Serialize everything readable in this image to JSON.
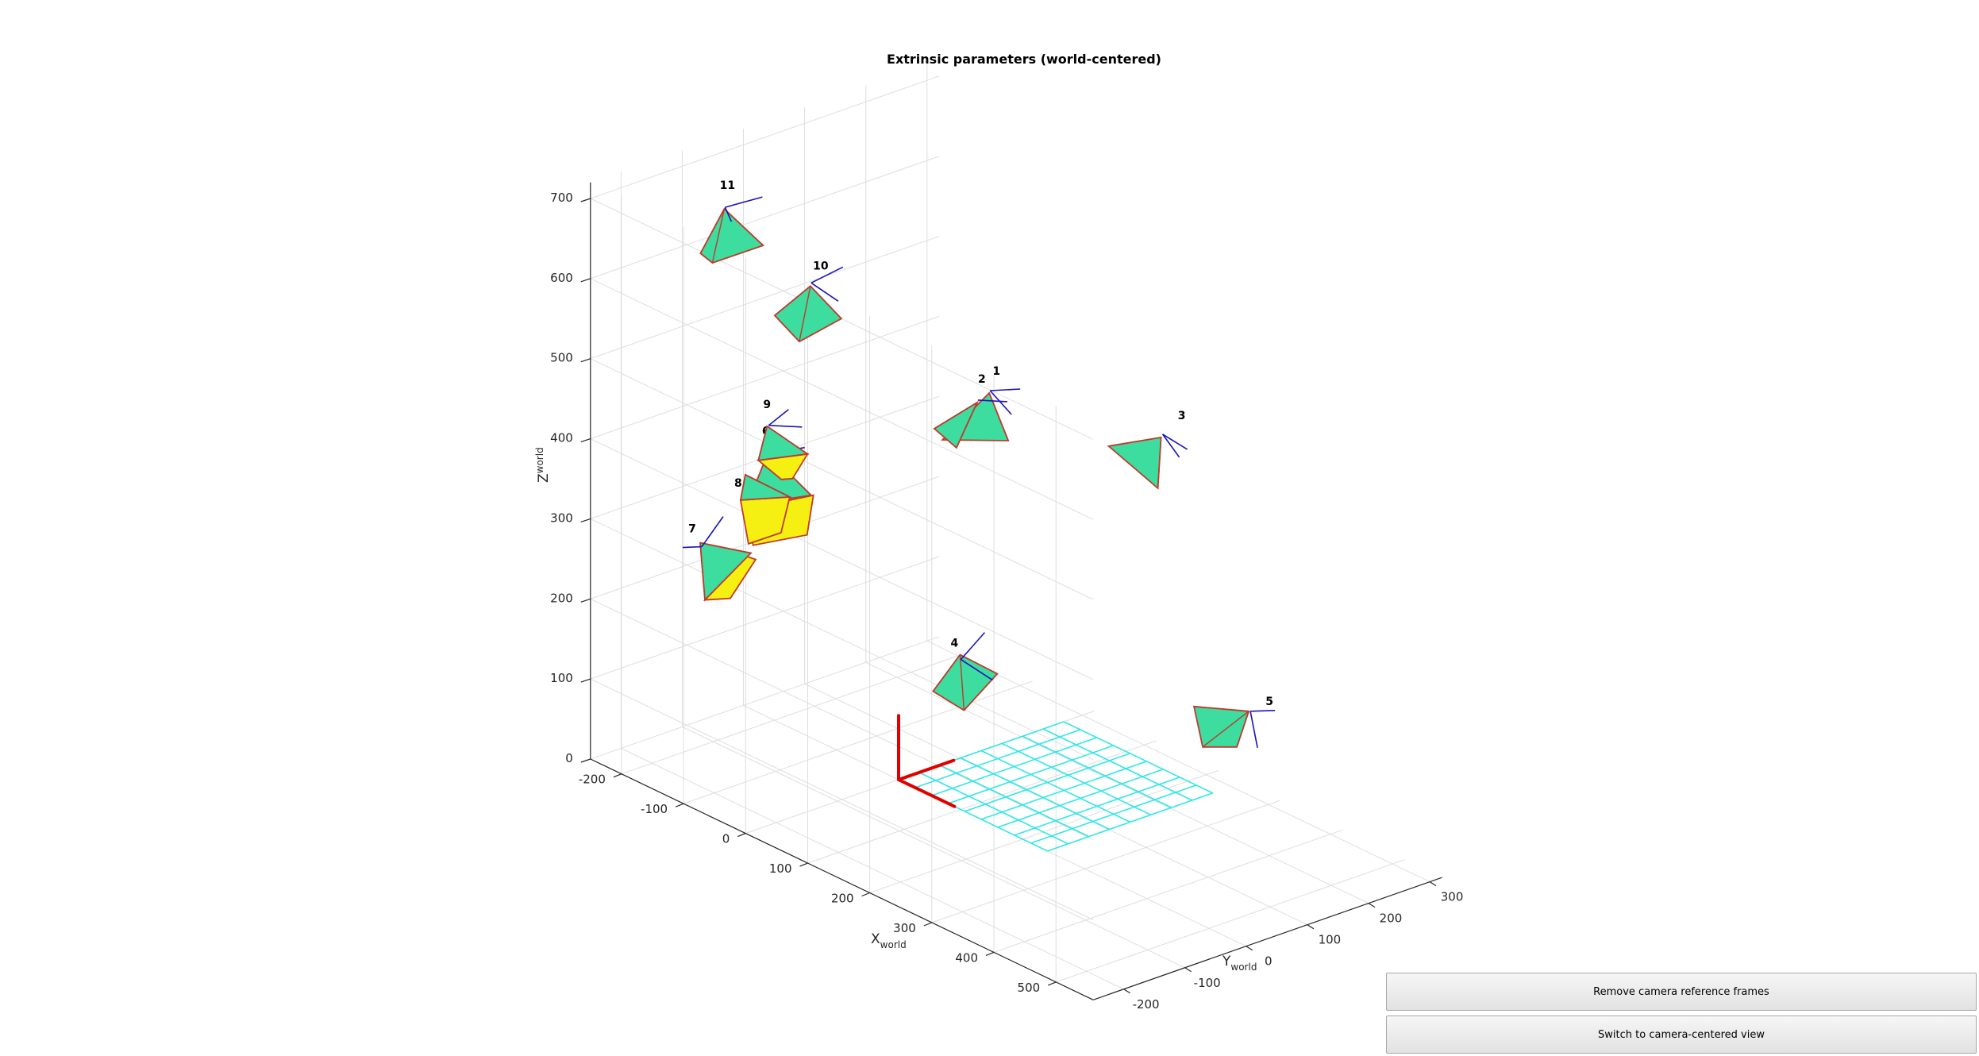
{
  "figure": {
    "buttons": {
      "remove_frames": "Remove camera reference frames",
      "switch_view": "Switch to camera-centered view"
    }
  },
  "chart_data": {
    "type": "3d-scatter",
    "title": "Extrinsic parameters (world-centered)",
    "axes": {
      "x": {
        "label": "X",
        "sub": "world",
        "ticks": [
          -200,
          -100,
          0,
          100,
          200,
          300,
          400,
          500
        ],
        "range": [
          -250,
          560
        ]
      },
      "y": {
        "label": "Y",
        "sub": "world",
        "ticks": [
          -200,
          -100,
          0,
          100,
          200,
          300
        ],
        "range": [
          -250,
          320
        ]
      },
      "z": {
        "label": "Z",
        "sub": "world",
        "ticks": [
          0,
          100,
          200,
          300,
          400,
          500,
          600,
          700
        ],
        "range": [
          0,
          720
        ]
      }
    },
    "grid": true,
    "colors": {
      "camera_face": "#3ddc9f",
      "camera_edge": "#c0392b",
      "axis_line": "#1a14b8",
      "image_plane": "#f5f011",
      "world_frame": "#e00000",
      "checkerboard": "#33e6e6"
    },
    "world_frame": {
      "origin": [
        0,
        0,
        0
      ]
    },
    "checkerboard": {
      "x_range": [
        0,
        240
      ],
      "y_range": [
        0,
        270
      ],
      "cols": 9,
      "rows": 8
    },
    "cameras": [
      {
        "id": "1",
        "center": [
          -40,
          190,
          420
        ]
      },
      {
        "id": "2",
        "center": [
          -30,
          160,
          420
        ]
      },
      {
        "id": "3",
        "center": [
          100,
          330,
          380
        ]
      },
      {
        "id": "4",
        "center": [
          120,
          -20,
          200
        ]
      },
      {
        "id": "5",
        "center": [
          340,
          230,
          150
        ]
      },
      {
        "id": "6",
        "center": [
          -130,
          -80,
          380
        ]
      },
      {
        "id": "7",
        "center": [
          -120,
          -200,
          300
        ]
      },
      {
        "id": "8",
        "center": [
          -130,
          -120,
          340
        ]
      },
      {
        "id": "9",
        "center": [
          -170,
          -40,
          390
        ]
      },
      {
        "id": "10",
        "center": [
          -200,
          60,
          530
        ]
      },
      {
        "id": "11",
        "center": [
          -250,
          -30,
          630
        ]
      }
    ]
  }
}
